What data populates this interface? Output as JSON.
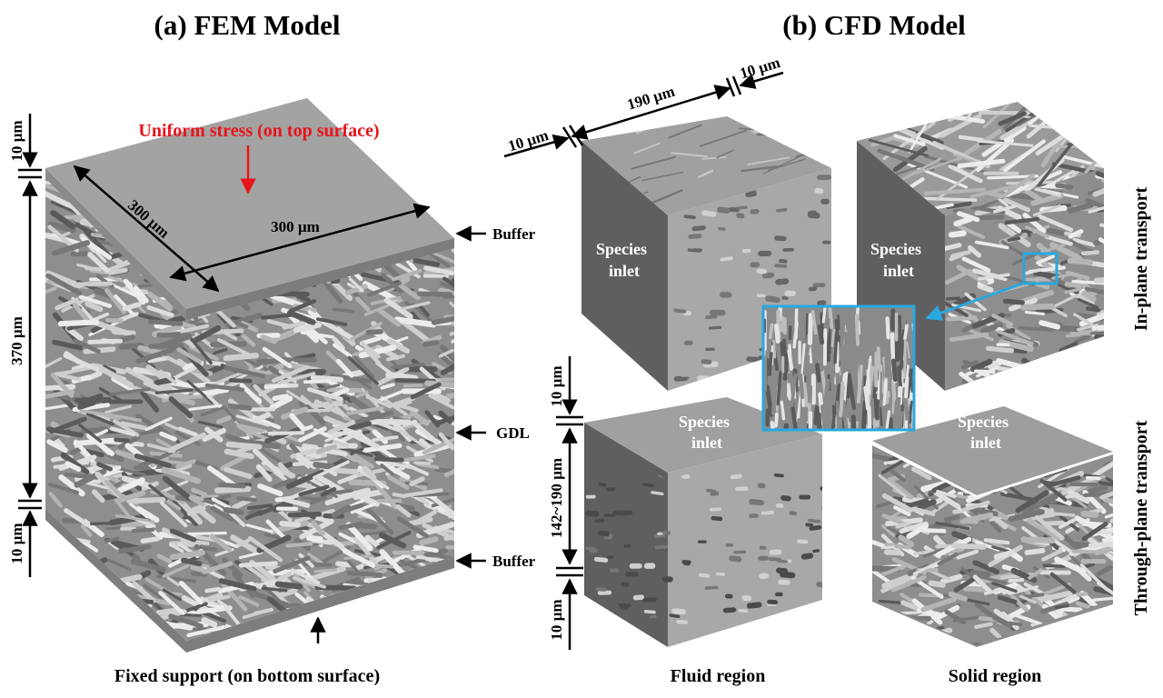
{
  "titles": {
    "fem": "(a) FEM Model",
    "cfd": "(b) CFD Model"
  },
  "fem": {
    "load_label": "Uniform stress (on top surface)",
    "dim_top_buffer": "10 µm",
    "dim_gdl": "370 µm",
    "dim_bottom_buffer": "10 µm",
    "dim_width_1": "300 µm",
    "dim_width_2": "300 µm",
    "label_buffer_top": "Buffer",
    "label_gdl": "GDL",
    "label_buffer_bottom": "Buffer",
    "support_label": "Fixed support (on bottom surface)"
  },
  "cfd": {
    "dim_190": "190 µm",
    "dim_10_left": "10 µm",
    "dim_10_right": "10 µm",
    "dim_10_top": "10 µm",
    "dim_142_190": "142~190 µm",
    "dim_10_bottom": "10 µm",
    "species_inlet_line1": "Species",
    "species_inlet_line2": "inlet",
    "row_in_plane": "In-plane transport",
    "row_through_plane": "Through-plane transport",
    "col_fluid": "Fluid region",
    "col_solid": "Solid region"
  },
  "colors": {
    "load_arrow": "#e8141b",
    "inset_border": "#29a8df",
    "surface": "#9a9a9a",
    "dark_face": "#5f5f5f"
  }
}
